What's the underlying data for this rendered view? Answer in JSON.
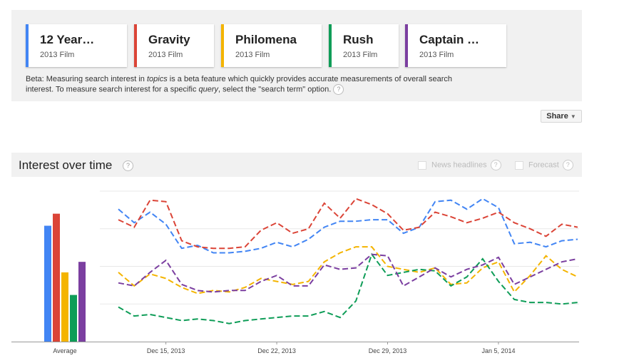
{
  "topics": [
    {
      "title": "12 Year…",
      "sub": "2013 Film",
      "color": "#4285f4"
    },
    {
      "title": "Gravity",
      "sub": "2013 Film",
      "color": "#db4437"
    },
    {
      "title": "Philomena",
      "sub": "2013 Film",
      "color": "#f4b400"
    },
    {
      "title": "Rush",
      "sub": "2013 Film",
      "color": "#0f9d58"
    },
    {
      "title": "Captain …",
      "sub": "2013 Film",
      "color": "#7b3fa0"
    }
  ],
  "beta_notice": {
    "prefix": "Beta: Measuring search interest in ",
    "topics_word": "topics",
    "middle": " is a beta feature which quickly provides accurate measurements of overall search interest. To measure search interest for a specific ",
    "query_word": "query",
    "suffix": ", select the \"search term\" option."
  },
  "help_symbol": "?",
  "share_label": "Share",
  "share_caret": "▼",
  "interest_section": {
    "title": "Interest over time",
    "news_label": "News headlines",
    "forecast_label": "Forecast"
  },
  "chart_data": {
    "type": "line",
    "average_label": "Average",
    "averages": [
      77,
      85,
      46,
      31,
      53
    ],
    "ylim": [
      0,
      100
    ],
    "x_ticks": [
      {
        "label": "Dec 15, 2013",
        "index": 3
      },
      {
        "label": "Dec 22, 2013",
        "index": 10
      },
      {
        "label": "Dec 29, 2013",
        "index": 17
      },
      {
        "label": "Jan 5, 2014",
        "index": 24
      }
    ],
    "series": [
      {
        "color": "#4285f4",
        "values": [
          88,
          79,
          86,
          78,
          62,
          64,
          59,
          59,
          60,
          62,
          66,
          63,
          68,
          76,
          80,
          80,
          81,
          81,
          72,
          76,
          93,
          94,
          88,
          95,
          89,
          65,
          66,
          63,
          67,
          68
        ]
      },
      {
        "color": "#db4437",
        "values": [
          81,
          76,
          94,
          93,
          67,
          63,
          62,
          62,
          63,
          74,
          79,
          72,
          75,
          92,
          82,
          95,
          91,
          85,
          74,
          76,
          86,
          83,
          79,
          82,
          86,
          79,
          75,
          70,
          78,
          76
        ]
      },
      {
        "color": "#f4b400",
        "values": [
          46,
          37,
          45,
          42,
          36,
          32,
          34,
          33,
          36,
          42,
          40,
          38,
          40,
          53,
          59,
          63,
          63,
          50,
          48,
          46,
          49,
          38,
          39,
          49,
          53,
          33,
          44,
          57,
          48,
          43
        ]
      },
      {
        "color": "#0f9d58",
        "values": [
          23,
          17,
          18,
          16,
          14,
          15,
          14,
          12,
          14,
          15,
          16,
          17,
          17,
          20,
          16,
          27,
          58,
          44,
          46,
          48,
          47,
          37,
          43,
          55,
          40,
          28,
          26,
          26,
          25,
          26
        ]
      },
      {
        "color": "#7b3fa0",
        "values": [
          39,
          37,
          46,
          54,
          38,
          34,
          33,
          34,
          34,
          40,
          44,
          37,
          37,
          51,
          48,
          49,
          58,
          57,
          37,
          43,
          49,
          43,
          48,
          51,
          56,
          38,
          43,
          48,
          53,
          55
        ]
      }
    ]
  }
}
